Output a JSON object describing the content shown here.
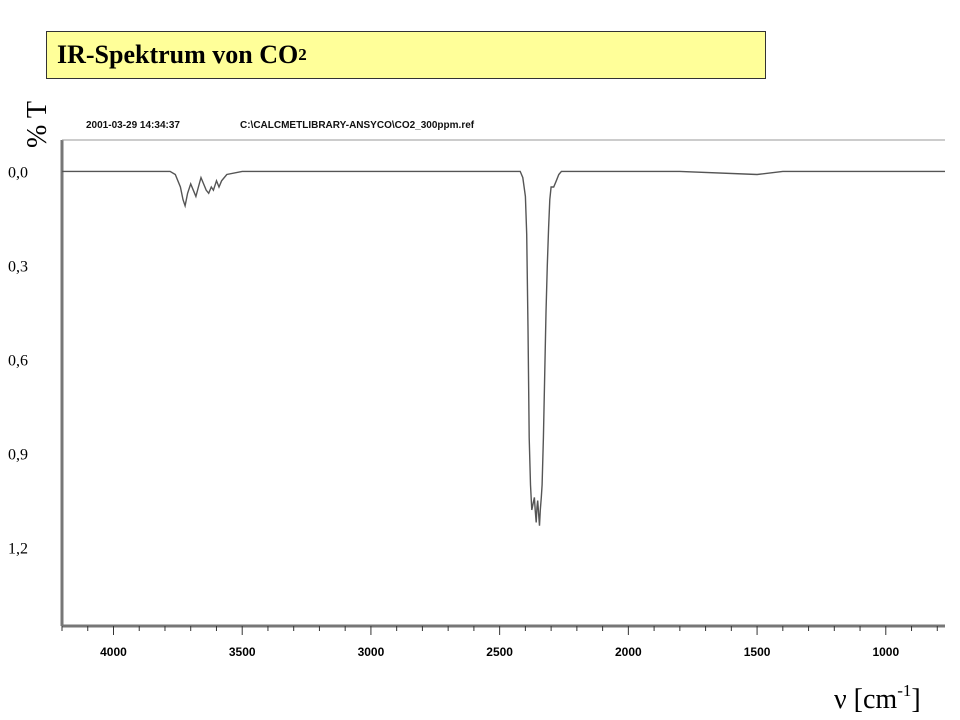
{
  "chart_data": {
    "type": "line",
    "title": "IR-Spektrum von CO",
    "title_subscript": "2",
    "ylabel": "% T",
    "xlabel": "ν [cm",
    "xlabel_superscript": "-1",
    "xlabel_close": "]",
    "header_timestamp": "2001-03-29 14:34:37",
    "header_file": "C:\\CALCMETLIBRARY-ANSYCO\\CO2_300ppm.ref",
    "x_reversed": true,
    "xlim": [
      4200,
      770
    ],
    "ylim": [
      -0.1,
      1.45
    ],
    "y_inverted": true,
    "grid": false,
    "legend": "none",
    "yticks": [
      0.0,
      0.3,
      0.6,
      0.9,
      1.2
    ],
    "ytick_labels": [
      "0,0",
      "0,3",
      "0,6",
      "0,9",
      "1,2"
    ],
    "xticks": [
      4000,
      3500,
      3000,
      2500,
      2000,
      1500,
      1000
    ],
    "xtick_labels": [
      "4000",
      "3500",
      "3000",
      "2500",
      "2000",
      "1500",
      "1000"
    ],
    "color": "#555555",
    "series": [
      {
        "x": [
          4200,
          3900,
          3780,
          3760,
          3740,
          3730,
          3722,
          3712,
          3700,
          3690,
          3680,
          3670,
          3660,
          3650,
          3640,
          3630,
          3620,
          3612,
          3600,
          3590,
          3580,
          3560,
          3500,
          3200,
          3000,
          2700,
          2450,
          2420,
          2410,
          2400,
          2395,
          2390,
          2385,
          2380,
          2375,
          2370,
          2365,
          2362,
          2358,
          2355,
          2352,
          2348,
          2345,
          2342,
          2338,
          2335,
          2330,
          2325,
          2320,
          2315,
          2310,
          2305,
          2300,
          2290,
          2280,
          2270,
          2260,
          2250,
          2200,
          2000,
          1800,
          1500,
          1400,
          1200,
          1000,
          770
        ],
        "y": [
          0.0,
          0.0,
          0.0,
          0.01,
          0.05,
          0.09,
          0.11,
          0.07,
          0.04,
          0.06,
          0.08,
          0.05,
          0.02,
          0.04,
          0.06,
          0.07,
          0.05,
          0.06,
          0.03,
          0.05,
          0.03,
          0.01,
          0.0,
          0.0,
          0.0,
          0.0,
          0.0,
          0.0,
          0.02,
          0.08,
          0.2,
          0.5,
          0.85,
          1.0,
          1.08,
          1.06,
          1.04,
          1.08,
          1.12,
          1.07,
          1.05,
          1.1,
          1.13,
          1.08,
          1.04,
          1.0,
          0.85,
          0.65,
          0.45,
          0.3,
          0.18,
          0.09,
          0.05,
          0.05,
          0.03,
          0.01,
          0.0,
          0.0,
          0.0,
          0.0,
          0.0,
          0.01,
          0.0,
          0.0,
          0.0,
          0.0
        ]
      }
    ]
  }
}
